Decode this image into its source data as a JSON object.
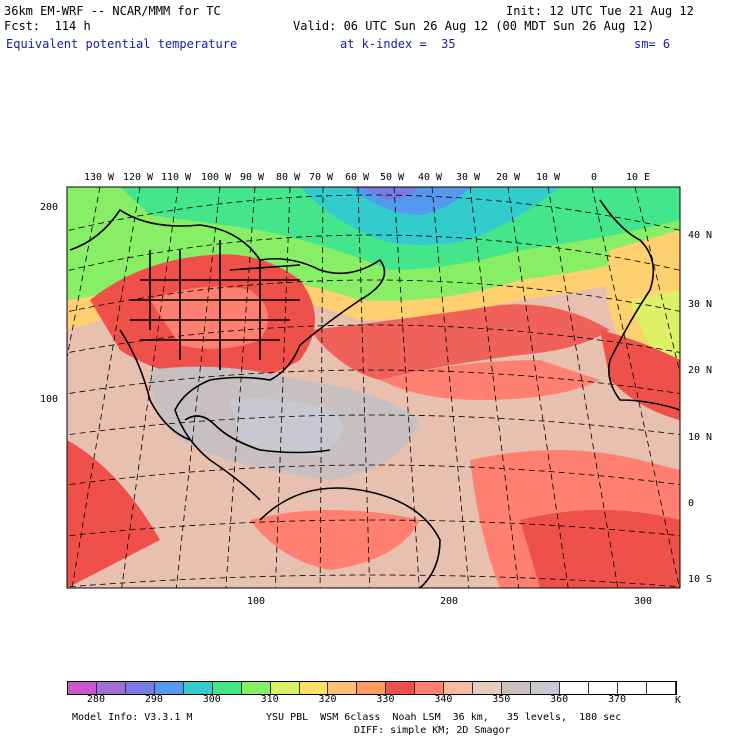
{
  "header": {
    "model_title": "36km EM-WRF -- NCAR/MMM for TC",
    "init": "Init: 12 UTC Tue 21 Aug 12",
    "forecast": "Fcst:  114 h",
    "valid": "Valid: 06 UTC Sun 26 Aug 12 (00 MDT Sun 26 Aug 12)",
    "field": "Equivalent potential temperature",
    "level": "at k-index =  35",
    "smoothing": "sm= 6"
  },
  "map": {
    "longitude_labels": [
      "130 W",
      "120 W",
      "110 W",
      "100 W",
      "90 W",
      "80 W",
      "70 W",
      "60 W",
      "50 W",
      "40 W",
      "30 W",
      "20 W",
      "10 W",
      "0",
      "10 E"
    ],
    "latitude_labels": [
      "40 N",
      "30 N",
      "20 N",
      "10 N",
      "0",
      "10 S"
    ],
    "grid_y_labels": [
      "200",
      "100"
    ],
    "grid_x_labels": [
      "100",
      "200",
      "300"
    ]
  },
  "colorbar": {
    "labels": [
      "280",
      "290",
      "300",
      "310",
      "320",
      "330",
      "340",
      "350",
      "360",
      "370"
    ],
    "unit": "K",
    "colors": [
      "#cc55cc",
      "#a070d8",
      "#7a7ae6",
      "#5599ee",
      "#33cccc",
      "#44e68c",
      "#88ee66",
      "#ddf066",
      "#ffe066",
      "#ffc070",
      "#ff9a60",
      "#f0504a",
      "#ff8070",
      "#f8b8a0",
      "#e8ccc0",
      "#c8c0c0",
      "#c8c8d0",
      "#ffffff",
      "#ffffff",
      "#ffffff",
      "#ffffff"
    ]
  },
  "footer": {
    "line1_left": "Model Info: V3.3.1 M",
    "line1_right": "YSU PBL  WSM 6class  Noah LSM  36 km,   35 levels,  180 sec",
    "line2": "DIFF: simple KM; 2D Smagor"
  }
}
